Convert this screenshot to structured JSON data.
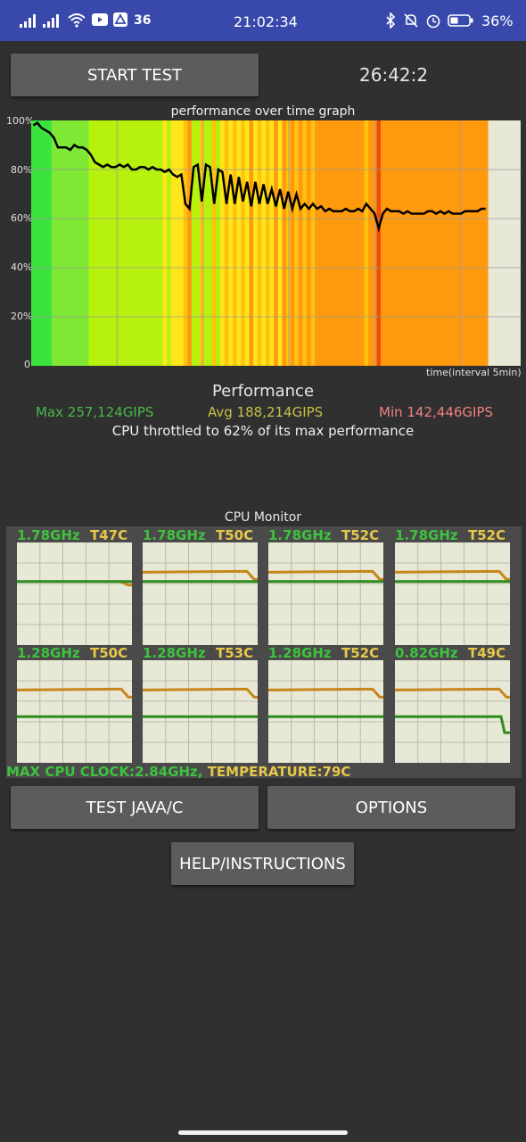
{
  "status_bar": {
    "time": "21:02:34",
    "network_label": "36",
    "battery_percent": "36%",
    "icons": [
      "signal-icon",
      "signal-icon",
      "wifi-icon",
      "youtube-icon",
      "app-icon",
      "bluetooth-icon",
      "mute-icon",
      "alarm-icon",
      "battery-icon"
    ]
  },
  "controls": {
    "start_test": "START TEST",
    "timer": "26:42:2",
    "test_java_c": "TEST JAVA/C",
    "options": "OPTIONS",
    "help": "HELP/INSTRUCTIONS"
  },
  "performance_graph": {
    "title": "performance over time graph",
    "y_ticks": [
      "0",
      "20%",
      "40%",
      "60%",
      "80%",
      "100%"
    ],
    "x_label": "time(interval 5min)"
  },
  "performance": {
    "heading": "Performance",
    "max": "Max 257,124GIPS",
    "avg": "Avg 188,214GIPS",
    "min": "Min 142,446GIPS",
    "throttle_note": "CPU throttled to 62% of its max performance"
  },
  "cpu_monitor": {
    "title": "CPU Monitor",
    "cores": [
      {
        "freq": "1.78GHz",
        "temp": "T47C"
      },
      {
        "freq": "1.78GHz",
        "temp": "T50C"
      },
      {
        "freq": "1.78GHz",
        "temp": "T52C"
      },
      {
        "freq": "1.78GHz",
        "temp": "T52C"
      },
      {
        "freq": "1.28GHz",
        "temp": "T50C"
      },
      {
        "freq": "1.28GHz",
        "temp": "T53C"
      },
      {
        "freq": "1.28GHz",
        "temp": "T52C"
      },
      {
        "freq": "0.82GHz",
        "temp": "T49C"
      }
    ],
    "max_clock": "MAX CPU CLOCK:2.84GHz,",
    "temperature": "TEMPERATURE:79C"
  },
  "colors": {
    "status_bar": "#3949ab",
    "background": "#303030",
    "button": "#5c5c5c",
    "graph_bg": "#e8e8d6",
    "max_green": "#46b946",
    "avg_yellow": "#c8c046",
    "min_red": "#f08080",
    "freq_green": "#3ec33e",
    "temp_yellow": "#e8c84a"
  },
  "chart_data": {
    "type": "line",
    "title": "performance over time graph",
    "xlabel": "time(interval 5min)",
    "ylabel": "",
    "ylim": [
      0,
      100
    ],
    "y_ticks": [
      "0",
      "20%",
      "40%",
      "60%",
      "80%",
      "100%"
    ],
    "series": [
      {
        "values": [
          98,
          99,
          97,
          96,
          95,
          93,
          89,
          89,
          89,
          88,
          90,
          89,
          89,
          88,
          86,
          83,
          82,
          81,
          82,
          81,
          81,
          82,
          81,
          82,
          80,
          80,
          81,
          81,
          80,
          81,
          80,
          80,
          79,
          80,
          78,
          77,
          78,
          66,
          64,
          81,
          82,
          67,
          82,
          81,
          66,
          80,
          79,
          66,
          78,
          66,
          77,
          67,
          75,
          65,
          75,
          66,
          74,
          66,
          72,
          65,
          72,
          64,
          71,
          64,
          70,
          64,
          66,
          64,
          66,
          64,
          65,
          63,
          64,
          63,
          63,
          63,
          64,
          63,
          63,
          64,
          63,
          66,
          64,
          62,
          56,
          62,
          64,
          63,
          63,
          63,
          62,
          63,
          62,
          62,
          62,
          62,
          63,
          63,
          62,
          63,
          62,
          63,
          62,
          62,
          62,
          63,
          63,
          63,
          63,
          64,
          64
        ]
      }
    ]
  }
}
